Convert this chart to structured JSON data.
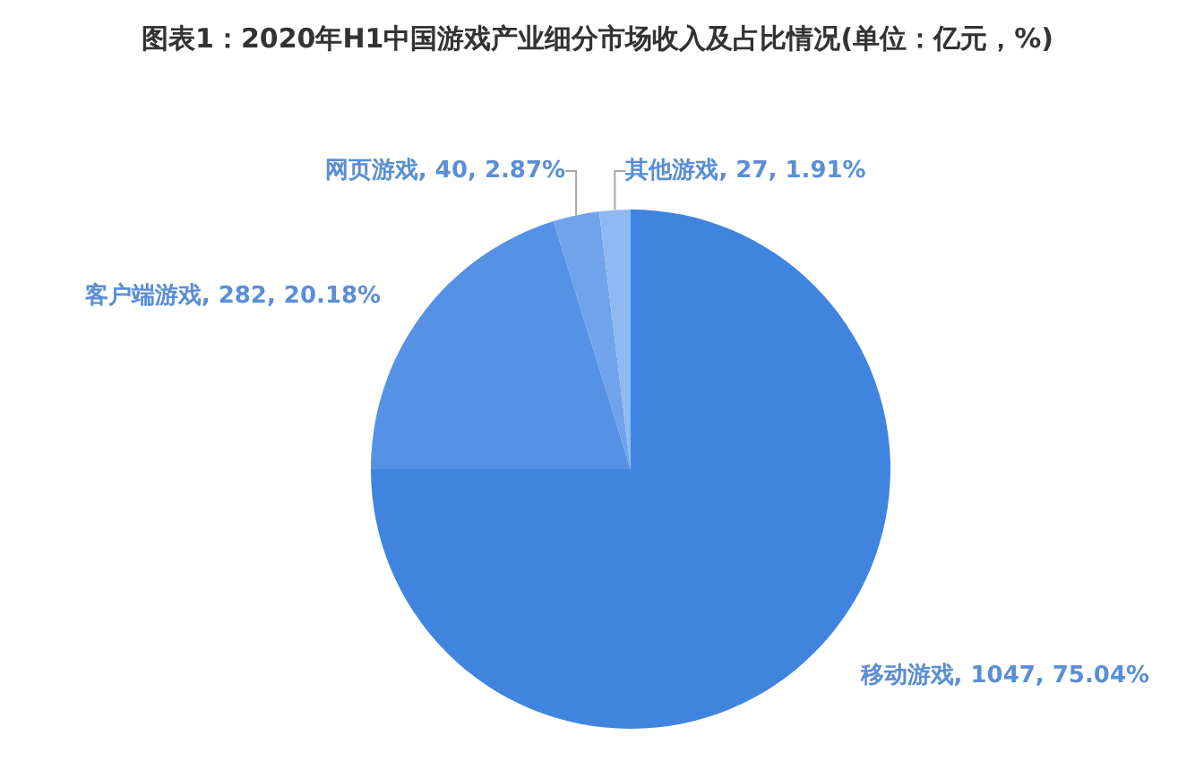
{
  "chart_data": {
    "type": "pie",
    "title": "图表1：2020年H1中国游戏产业细分市场收入及占比情况(单位：亿元，%)",
    "categories": [
      "移动游戏",
      "客户端游戏",
      "网页游戏",
      "其他游戏"
    ],
    "values": [
      1047,
      282,
      40,
      27
    ],
    "value_labels": [
      "1047, 75.04%",
      "282, 20.18%",
      "40, 2.87%",
      "27, 1.91%"
    ],
    "colors": [
      "#3f85e0",
      "#5592e5",
      "#6fa3ec",
      "#8fb9f2"
    ],
    "legend": false
  }
}
